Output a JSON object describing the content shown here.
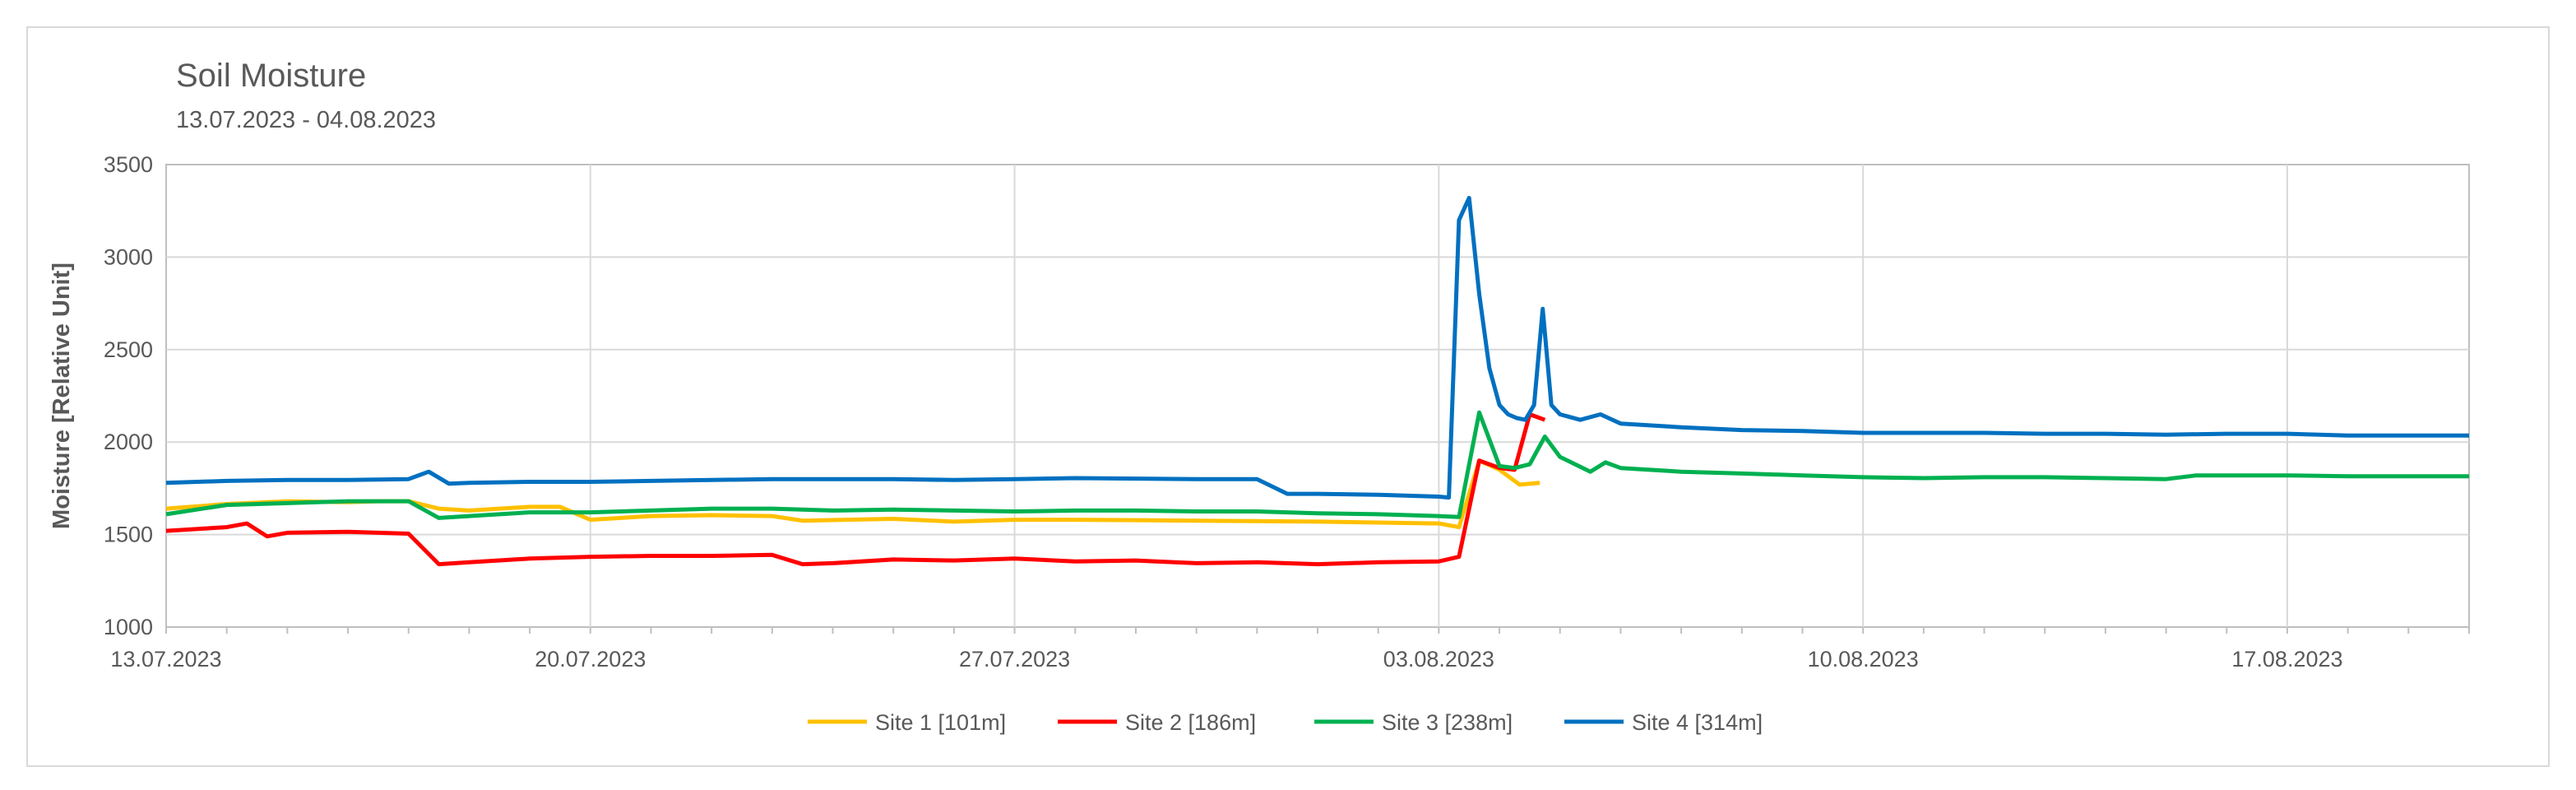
{
  "chart_data": {
    "type": "line",
    "title": "Soil Moisture",
    "subtitle": "13.07.2023 - 04.08.2023",
    "xlabel": "",
    "ylabel": "Moisture  [Relative Unit]",
    "ylim": [
      1000,
      3500
    ],
    "yticks": [
      1000,
      1500,
      2000,
      2500,
      3000,
      3500
    ],
    "xlim": [
      "13.07.2023",
      "20.08.2023"
    ],
    "xticks": [
      "13.07.2023",
      "20.07.2023",
      "27.07.2023",
      "03.08.2023",
      "10.08.2023",
      "17.08.2023"
    ],
    "grid": true,
    "legend_position": "bottom",
    "series": [
      {
        "name": "Site 1 [101m]",
        "color": "#FFC000",
        "points": [
          [
            "13.07.2023",
            1640
          ],
          [
            "14.07.2023",
            1665
          ],
          [
            "15.07.2023",
            1680
          ],
          [
            "16.07.2023",
            1675
          ],
          [
            "16.07.2023",
            1680
          ],
          [
            "17.07.2023",
            1680
          ],
          [
            "17.07.2023",
            1640
          ],
          [
            "18.07.2023",
            1630
          ],
          [
            "19.07.2023",
            1650
          ],
          [
            "19.07.2023",
            1650
          ],
          [
            "20.07.2023",
            1580
          ],
          [
            "21.07.2023",
            1600
          ],
          [
            "22.07.2023",
            1605
          ],
          [
            "23.07.2023",
            1600
          ],
          [
            "23.07.2023",
            1575
          ],
          [
            "25.07.2023",
            1585
          ],
          [
            "26.07.2023",
            1570
          ],
          [
            "27.07.2023",
            1580
          ],
          [
            "28.07.2023",
            1580
          ],
          [
            "30.07.2023",
            1575
          ],
          [
            "01.08.2023",
            1570
          ],
          [
            "03.08.2023",
            1560
          ],
          [
            "03.08.2023",
            1540
          ],
          [
            "03.08.2023",
            1900
          ],
          [
            "04.08.2023",
            1850
          ],
          [
            "04.08.2023",
            1770
          ],
          [
            "04.08.2023",
            1780
          ]
        ]
      },
      {
        "name": "Site 2 [186m]",
        "color": "#FF0000",
        "points": [
          [
            "13.07.2023",
            1520
          ],
          [
            "14.07.2023",
            1540
          ],
          [
            "14.07.2023",
            1560
          ],
          [
            "14.07.2023",
            1490
          ],
          [
            "15.07.2023",
            1510
          ],
          [
            "16.07.2023",
            1515
          ],
          [
            "17.07.2023",
            1505
          ],
          [
            "17.07.2023",
            1340
          ],
          [
            "18.07.2023",
            1350
          ],
          [
            "19.07.2023",
            1370
          ],
          [
            "20.07.2023",
            1380
          ],
          [
            "21.07.2023",
            1385
          ],
          [
            "22.07.2023",
            1385
          ],
          [
            "23.07.2023",
            1390
          ],
          [
            "23.07.2023",
            1340
          ],
          [
            "24.07.2023",
            1345
          ],
          [
            "25.07.2023",
            1365
          ],
          [
            "26.07.2023",
            1360
          ],
          [
            "27.07.2023",
            1370
          ],
          [
            "28.07.2023",
            1355
          ],
          [
            "29.07.2023",
            1360
          ],
          [
            "30.07.2023",
            1345
          ],
          [
            "31.07.2023",
            1350
          ],
          [
            "01.08.2023",
            1340
          ],
          [
            "02.08.2023",
            1350
          ],
          [
            "03.08.2023",
            1355
          ],
          [
            "03.08.2023",
            1380
          ],
          [
            "03.08.2023",
            1900
          ],
          [
            "04.08.2023",
            1860
          ],
          [
            "04.08.2023",
            1850
          ],
          [
            "04.08.2023",
            2150
          ],
          [
            "04.08.2023",
            2120
          ]
        ]
      },
      {
        "name": "Site 3 [238m]",
        "color": "#00B050",
        "points": [
          [
            "13.07.2023",
            1610
          ],
          [
            "14.07.2023",
            1660
          ],
          [
            "15.07.2023",
            1670
          ],
          [
            "16.07.2023",
            1680
          ],
          [
            "17.07.2023",
            1680
          ],
          [
            "17.07.2023",
            1590
          ],
          [
            "18.07.2023",
            1600
          ],
          [
            "19.07.2023",
            1620
          ],
          [
            "20.07.2023",
            1620
          ],
          [
            "21.07.2023",
            1630
          ],
          [
            "22.07.2023",
            1640
          ],
          [
            "23.07.2023",
            1640
          ],
          [
            "24.07.2023",
            1630
          ],
          [
            "25.07.2023",
            1635
          ],
          [
            "26.07.2023",
            1630
          ],
          [
            "27.07.2023",
            1625
          ],
          [
            "28.07.2023",
            1630
          ],
          [
            "29.07.2023",
            1630
          ],
          [
            "30.07.2023",
            1625
          ],
          [
            "31.07.2023",
            1625
          ],
          [
            "01.08.2023",
            1615
          ],
          [
            "02.08.2023",
            1610
          ],
          [
            "03.08.2023",
            1600
          ],
          [
            "03.08.2023",
            1595
          ],
          [
            "03.08.2023",
            2160
          ],
          [
            "04.08.2023",
            1870
          ],
          [
            "04.08.2023",
            1860
          ],
          [
            "04.08.2023",
            1880
          ],
          [
            "04.08.2023",
            2030
          ],
          [
            "05.08.2023",
            1920
          ],
          [
            "05.08.2023",
            1880
          ],
          [
            "05.08.2023",
            1840
          ],
          [
            "05.08.2023",
            1890
          ],
          [
            "06.08.2023",
            1860
          ],
          [
            "07.08.2023",
            1840
          ],
          [
            "08.08.2023",
            1830
          ],
          [
            "09.08.2023",
            1820
          ],
          [
            "10.08.2023",
            1810
          ],
          [
            "11.08.2023",
            1805
          ],
          [
            "12.08.2023",
            1810
          ],
          [
            "13.08.2023",
            1810
          ],
          [
            "14.08.2023",
            1805
          ],
          [
            "15.08.2023",
            1800
          ],
          [
            "15.08.2023",
            1820
          ],
          [
            "17.08.2023",
            1820
          ],
          [
            "18.08.2023",
            1815
          ],
          [
            "19.08.2023",
            1815
          ],
          [
            "20.08.2023",
            1815
          ]
        ]
      },
      {
        "name": "Site 4 [314m]",
        "color": "#0070C0",
        "points": [
          [
            "13.07.2023",
            1780
          ],
          [
            "14.07.2023",
            1790
          ],
          [
            "15.07.2023",
            1795
          ],
          [
            "16.07.2023",
            1795
          ],
          [
            "17.07.2023",
            1800
          ],
          [
            "17.07.2023",
            1840
          ],
          [
            "17.07.2023",
            1775
          ],
          [
            "18.07.2023",
            1780
          ],
          [
            "19.07.2023",
            1785
          ],
          [
            "20.07.2023",
            1785
          ],
          [
            "21.07.2023",
            1790
          ],
          [
            "22.07.2023",
            1795
          ],
          [
            "23.07.2023",
            1800
          ],
          [
            "24.07.2023",
            1800
          ],
          [
            "25.07.2023",
            1800
          ],
          [
            "26.07.2023",
            1795
          ],
          [
            "27.07.2023",
            1800
          ],
          [
            "28.07.2023",
            1805
          ],
          [
            "30.07.2023",
            1800
          ],
          [
            "31.07.2023",
            1800
          ],
          [
            "31.07.2023",
            1720
          ],
          [
            "01.08.2023",
            1720
          ],
          [
            "02.08.2023",
            1715
          ],
          [
            "03.08.2023",
            1705
          ],
          [
            "03.08.2023",
            1700
          ],
          [
            "03.08.2023",
            3200
          ],
          [
            "03.08.2023",
            3320
          ],
          [
            "03.08.2023",
            2800
          ],
          [
            "03.08.2023",
            2400
          ],
          [
            "04.08.2023",
            2200
          ],
          [
            "04.08.2023",
            2150
          ],
          [
            "04.08.2023",
            2130
          ],
          [
            "04.08.2023",
            2120
          ],
          [
            "04.08.2023",
            2200
          ],
          [
            "04.08.2023",
            2720
          ],
          [
            "04.08.2023",
            2200
          ],
          [
            "05.08.2023",
            2150
          ],
          [
            "05.08.2023",
            2120
          ],
          [
            "05.08.2023",
            2150
          ],
          [
            "06.08.2023",
            2100
          ],
          [
            "07.08.2023",
            2080
          ],
          [
            "08.08.2023",
            2065
          ],
          [
            "09.08.2023",
            2060
          ],
          [
            "10.08.2023",
            2050
          ],
          [
            "11.08.2023",
            2050
          ],
          [
            "12.08.2023",
            2050
          ],
          [
            "13.08.2023",
            2045
          ],
          [
            "14.08.2023",
            2045
          ],
          [
            "15.08.2023",
            2040
          ],
          [
            "16.08.2023",
            2045
          ],
          [
            "17.08.2023",
            2045
          ],
          [
            "18.08.2023",
            2035
          ],
          [
            "19.08.2023",
            2035
          ],
          [
            "20.08.2023",
            2035
          ]
        ]
      }
    ]
  }
}
